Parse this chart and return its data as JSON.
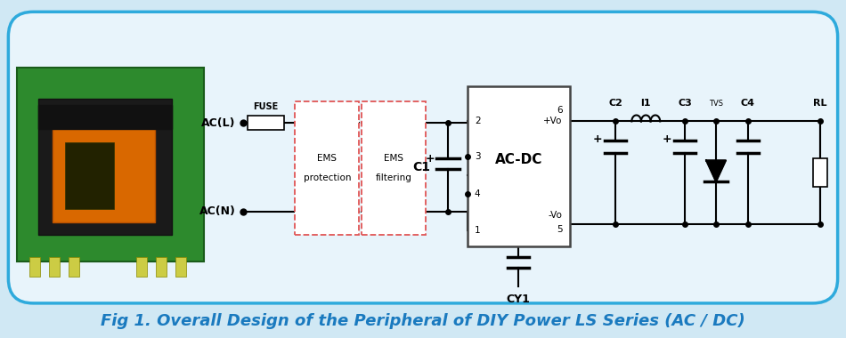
{
  "title": "Fig 1. Overall Design of the Peripheral of DIY Power LS Series (AC / DC)",
  "title_color": "#1a7abf",
  "title_fontsize": 13,
  "bg_color": "#e8f4fb",
  "border_color": "#2eaadc",
  "line_color": "#000000",
  "dashed_box_color": "#e05555",
  "ac_l_label": "AC(L)",
  "ac_n_label": "AC(N)",
  "fuse_label": "FUSE",
  "ems_prot_label": [
    "EMS",
    "protection"
  ],
  "ems_filt_label": [
    "EMS",
    "filtering"
  ],
  "acdc_label": "AC-DC",
  "c1_label": "C1",
  "cy1_label": "CY1",
  "vop_label": "+Vo",
  "vom_label": "-Vo",
  "c2_label": "C2",
  "l1_label": "l1",
  "c3_label": "C3",
  "tvs_label": "TVS",
  "c4_label": "C4",
  "rl_label": "RL"
}
